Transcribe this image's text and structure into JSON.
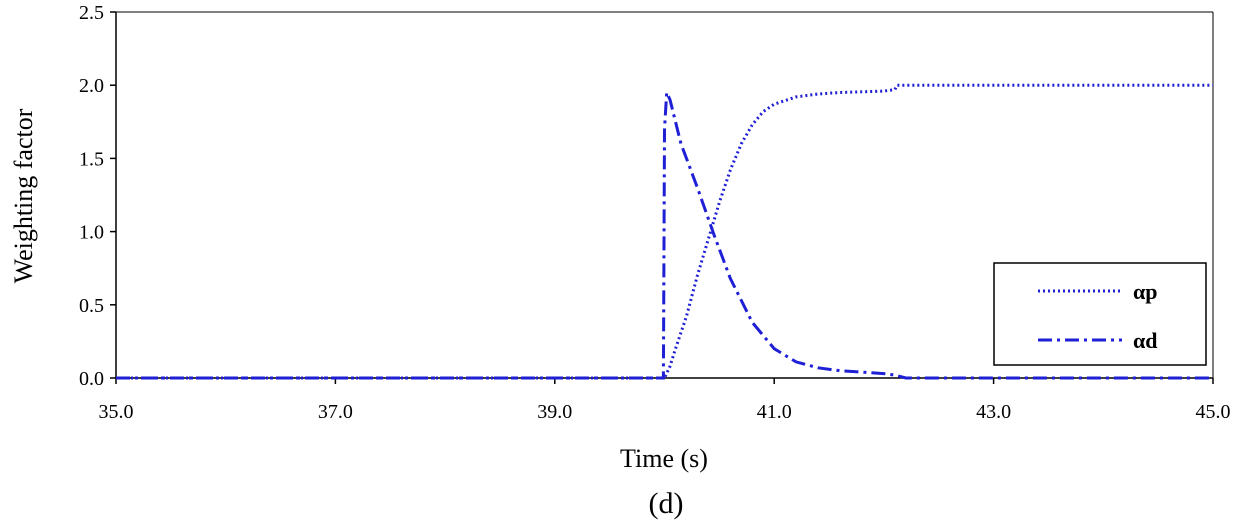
{
  "chart_data": {
    "type": "line",
    "title": "",
    "xlabel": "Time (s)",
    "ylabel": "Weighting factor",
    "caption": "(d)",
    "xlim": [
      35.0,
      45.0
    ],
    "ylim": [
      0.0,
      2.5
    ],
    "xticks": [
      "35.0",
      "37.0",
      "39.0",
      "41.0",
      "43.0",
      "45.0"
    ],
    "xtick_values": [
      35,
      37,
      39,
      41,
      43,
      45
    ],
    "yticks": [
      "0.0",
      "0.5",
      "1.0",
      "1.5",
      "2.0",
      "2.5"
    ],
    "ytick_values": [
      0,
      0.5,
      1.0,
      1.5,
      2.0,
      2.5
    ],
    "grid": false,
    "legend_position": "bottom-right",
    "series": [
      {
        "name": "αp",
        "color": "#1f1fd6",
        "dash": "dotted",
        "x": [
          35.0,
          40.0,
          40.05,
          40.1,
          40.2,
          40.3,
          40.4,
          40.5,
          40.6,
          40.7,
          40.8,
          40.9,
          41.0,
          41.2,
          41.4,
          41.6,
          41.8,
          42.0,
          42.1,
          42.12,
          43.0,
          44.0,
          45.0
        ],
        "y": [
          0.0,
          0.0,
          0.08,
          0.2,
          0.42,
          0.7,
          0.95,
          1.2,
          1.42,
          1.6,
          1.73,
          1.82,
          1.87,
          1.92,
          1.94,
          1.95,
          1.955,
          1.96,
          1.97,
          2.0,
          2.0,
          2.0,
          2.0
        ]
      },
      {
        "name": "αd",
        "color": "#1f1fd6",
        "dash": "dashdot",
        "x": [
          35.0,
          39.99,
          40.0,
          40.02,
          40.05,
          40.15,
          40.3,
          40.45,
          40.6,
          40.8,
          41.0,
          41.2,
          41.4,
          41.6,
          41.8,
          42.0,
          42.1,
          42.2,
          43.0,
          44.0,
          45.0
        ],
        "y": [
          0.0,
          0.0,
          1.7,
          1.95,
          1.9,
          1.6,
          1.3,
          0.98,
          0.68,
          0.38,
          0.2,
          0.11,
          0.07,
          0.05,
          0.04,
          0.03,
          0.02,
          0.0,
          0.0,
          0.0,
          0.0
        ]
      }
    ]
  }
}
